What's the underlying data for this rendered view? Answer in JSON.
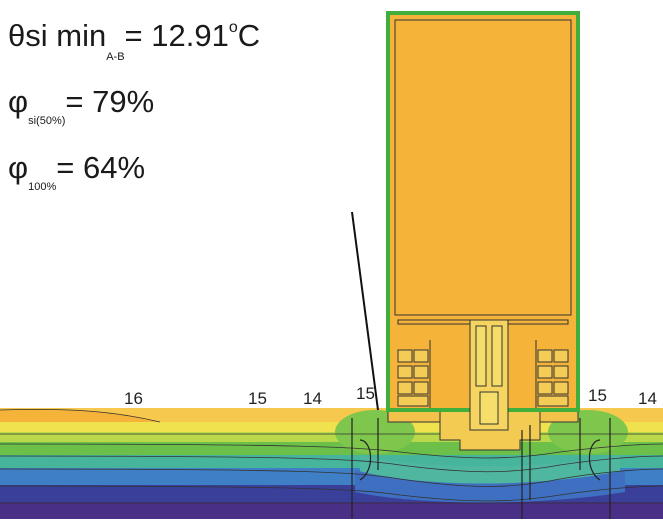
{
  "annotations": {
    "theta": {
      "symbol": "θ",
      "main": "si min",
      "sub": "A-B",
      "eq": "= 12.91",
      "unit_sup": "o",
      "unit": "C"
    },
    "phi50": {
      "symbol": "φ",
      "sub": "si(50%)",
      "eq": "= 79%"
    },
    "phi100": {
      "symbol": "φ",
      "sub": "100%",
      "eq": "= 64%"
    }
  },
  "isotherm_labels": [
    "16",
    "15",
    "14",
    "15",
    "15",
    "14"
  ],
  "colors": {
    "frame_outline": "#3fae3a",
    "orange": "#f6b33a",
    "light_orange": "#f7c84e",
    "yellow": "#f0e24e",
    "light_green": "#b9d94a",
    "green": "#6cc04a",
    "teal": "#46b59b",
    "blue": "#3f7fc6",
    "dark_blue": "#3a3f9a",
    "purple": "#4a2f86"
  }
}
